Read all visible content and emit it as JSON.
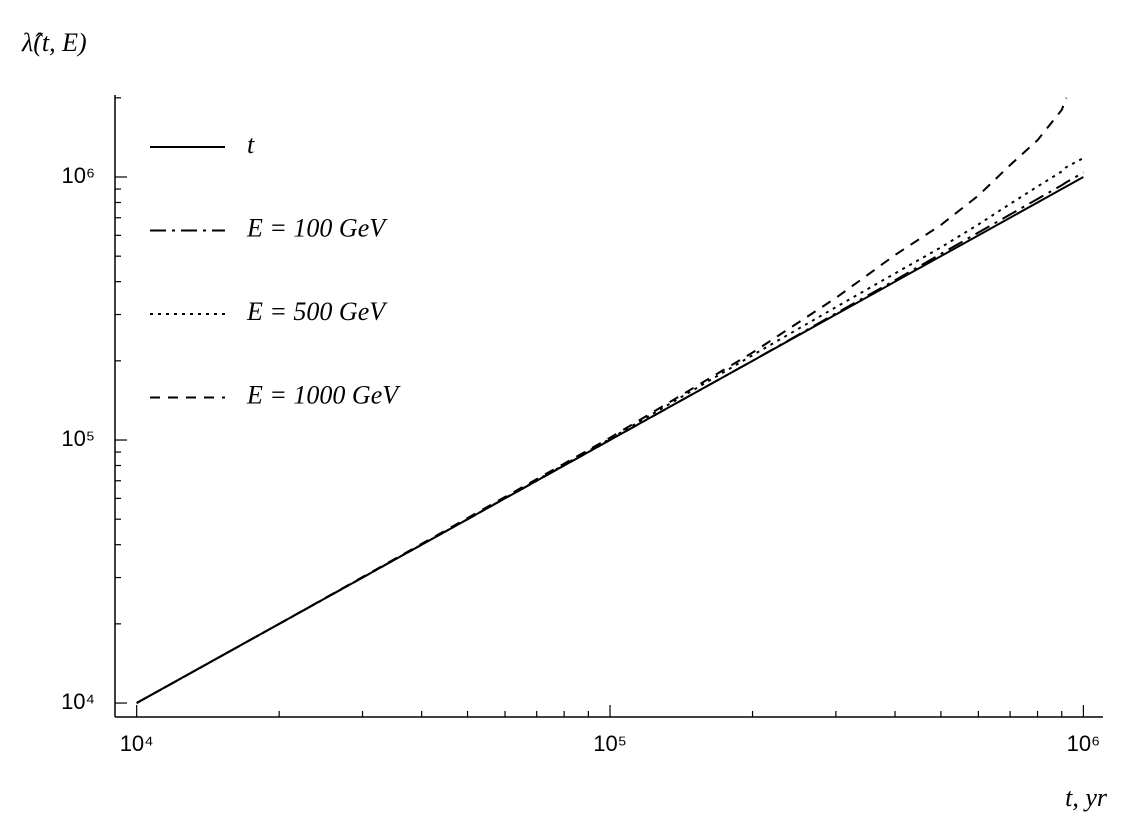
{
  "chart_data": {
    "type": "line",
    "y_label": "λ̂(t, E)",
    "x_label": "t, yr",
    "log_x": true,
    "log_y": true,
    "xlim": [
      9000,
      1100000
    ],
    "ylim": [
      8850,
      2050000
    ],
    "xticks": [
      {
        "value": 10000,
        "label": "10⁴"
      },
      {
        "value": 100000,
        "label": "10⁵"
      },
      {
        "value": 1000000,
        "label": "10⁶"
      }
    ],
    "yticks": [
      {
        "value": 10000,
        "label": "10⁴"
      },
      {
        "value": 100000,
        "label": "10⁵"
      },
      {
        "value": 1000000,
        "label": "10⁶"
      }
    ],
    "xminorticks": [
      20000,
      30000,
      40000,
      50000,
      60000,
      70000,
      80000,
      90000,
      200000,
      300000,
      400000,
      500000,
      600000,
      700000,
      800000,
      900000
    ],
    "yminorticks": [
      20000,
      30000,
      40000,
      50000,
      60000,
      70000,
      80000,
      90000,
      200000,
      300000,
      400000,
      500000,
      600000,
      700000,
      800000,
      900000,
      2000000
    ],
    "legend": "upper left",
    "x": [
      10000,
      20000,
      50000,
      100000,
      200000,
      300000,
      400000,
      500000,
      600000,
      700000,
      800000,
      900000,
      920000,
      1000000
    ],
    "series": [
      {
        "name": "t",
        "color": "#000000",
        "dash": "solid",
        "values": [
          10000,
          20000,
          50000,
          100000,
          200000,
          300000,
          400000,
          500000,
          600000,
          700000,
          800000,
          900000,
          920000,
          1000000
        ]
      },
      {
        "name": "E = 100 GeV",
        "color": "#000000",
        "dash": "dashdot",
        "values": [
          10000,
          20000,
          50000,
          100000,
          200000,
          303000,
          405000,
          510000,
          615000,
          720000,
          825000,
          930000,
          955000,
          1040000
        ]
      },
      {
        "name": "E = 500 GeV",
        "color": "#000000",
        "dash": "dotted",
        "values": [
          10000,
          20000,
          50000,
          101000,
          210000,
          320000,
          430000,
          540000,
          660000,
          790000,
          920000,
          1050000,
          1090000,
          1180000
        ]
      },
      {
        "name": "E = 1000 GeV",
        "color": "#000000",
        "dash": "dashed",
        "values": [
          10000,
          20000,
          50500,
          102000,
          215000,
          347000,
          505000,
          657000,
          850000,
          1110000,
          1380000,
          1800000,
          2000000,
          null
        ]
      }
    ]
  }
}
